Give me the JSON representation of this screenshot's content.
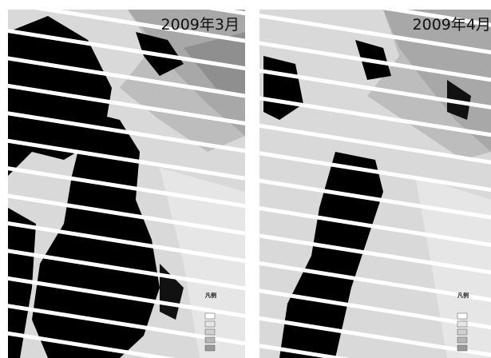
{
  "panels": [
    {
      "title": "2009年3月",
      "legend_title": "凡例"
    },
    {
      "title": "2009年4月",
      "legend_title": "凡例"
    }
  ]
}
